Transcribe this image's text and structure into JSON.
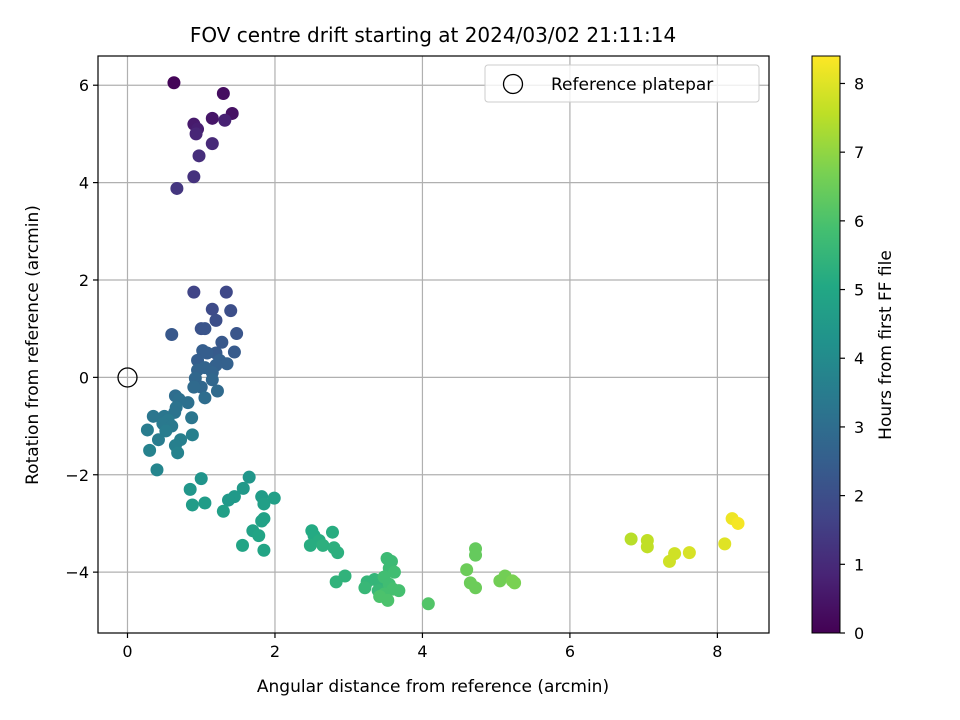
{
  "chart_data": {
    "type": "scatter",
    "title": "FOV centre drift starting at 2024/03/02 21:11:14",
    "xlabel": "Angular distance from reference (arcmin)",
    "ylabel": "Rotation from reference (arcmin)",
    "xlim": [
      -0.4,
      8.7
    ],
    "ylim": [
      -5.25,
      6.6
    ],
    "xticks": [
      0,
      2,
      4,
      6,
      8
    ],
    "yticks": [
      -4,
      -2,
      0,
      2,
      4,
      6
    ],
    "grid": true,
    "colormap": "viridis",
    "colorbar": {
      "label": "Hours from first FF file",
      "range": [
        0,
        8.4
      ],
      "ticks": [
        0,
        1,
        2,
        3,
        4,
        5,
        6,
        7,
        8
      ]
    },
    "legend": {
      "position": "top-right",
      "entries": [
        {
          "label": "Reference platepar",
          "marker": "open-circle"
        }
      ]
    },
    "reference_point": {
      "x": 0,
      "y": 0
    },
    "points": [
      [
        0.63,
        6.05,
        0.1
      ],
      [
        1.3,
        5.83,
        0.3
      ],
      [
        1.42,
        5.42,
        0.4
      ],
      [
        1.15,
        5.32,
        0.5
      ],
      [
        0.9,
        5.2,
        0.6
      ],
      [
        0.95,
        5.1,
        0.7
      ],
      [
        1.32,
        5.28,
        0.8
      ],
      [
        0.93,
        5.0,
        0.9
      ],
      [
        1.15,
        4.8,
        1.0
      ],
      [
        0.97,
        4.55,
        1.1
      ],
      [
        0.9,
        4.12,
        1.2
      ],
      [
        0.67,
        3.88,
        1.3
      ],
      [
        0.9,
        1.75,
        1.7
      ],
      [
        1.34,
        1.75,
        1.8
      ],
      [
        1.15,
        1.4,
        1.9
      ],
      [
        1.4,
        1.37,
        2.0
      ],
      [
        1.2,
        1.17,
        2.0
      ],
      [
        1.0,
        1.0,
        2.1
      ],
      [
        1.05,
        1.0,
        2.2
      ],
      [
        1.48,
        0.9,
        2.2
      ],
      [
        0.6,
        0.88,
        2.3
      ],
      [
        1.28,
        0.72,
        2.3
      ],
      [
        1.2,
        0.5,
        2.4
      ],
      [
        1.45,
        0.52,
        2.4
      ],
      [
        1.02,
        0.55,
        2.5
      ],
      [
        1.08,
        0.5,
        2.5
      ],
      [
        0.95,
        0.35,
        2.5
      ],
      [
        1.25,
        0.35,
        2.6
      ],
      [
        1.35,
        0.28,
        2.6
      ],
      [
        1.2,
        0.25,
        2.6
      ],
      [
        1.05,
        0.2,
        2.7
      ],
      [
        0.95,
        0.15,
        2.7
      ],
      [
        1.15,
        0.1,
        2.7
      ],
      [
        0.92,
        -0.02,
        2.8
      ],
      [
        1.15,
        -0.05,
        2.8
      ],
      [
        1.0,
        -0.2,
        2.8
      ],
      [
        0.9,
        -0.2,
        2.9
      ],
      [
        1.22,
        -0.28,
        2.9
      ],
      [
        1.05,
        -0.42,
        3.0
      ],
      [
        0.65,
        -0.38,
        3.0
      ],
      [
        0.7,
        -0.45,
        3.1
      ],
      [
        0.82,
        -0.52,
        3.1
      ],
      [
        0.66,
        -0.62,
        3.2
      ],
      [
        0.64,
        -0.72,
        3.2
      ],
      [
        0.87,
        -0.83,
        3.3
      ],
      [
        0.5,
        -0.8,
        3.3
      ],
      [
        0.35,
        -0.8,
        3.3
      ],
      [
        0.55,
        -0.88,
        3.4
      ],
      [
        0.48,
        -0.95,
        3.4
      ],
      [
        0.6,
        -1.0,
        3.4
      ],
      [
        0.52,
        -1.1,
        3.5
      ],
      [
        0.27,
        -1.08,
        3.5
      ],
      [
        0.42,
        -1.28,
        3.5
      ],
      [
        0.72,
        -1.28,
        3.6
      ],
      [
        0.88,
        -1.18,
        3.6
      ],
      [
        0.65,
        -1.4,
        3.6
      ],
      [
        0.3,
        -1.5,
        3.7
      ],
      [
        0.68,
        -1.55,
        3.7
      ],
      [
        0.4,
        -1.9,
        3.8
      ],
      [
        1.0,
        -2.08,
        4.3
      ],
      [
        1.65,
        -2.05,
        4.4
      ],
      [
        0.85,
        -2.3,
        4.4
      ],
      [
        1.57,
        -2.28,
        4.5
      ],
      [
        1.45,
        -2.45,
        4.5
      ],
      [
        1.37,
        -2.52,
        4.5
      ],
      [
        1.05,
        -2.58,
        4.6
      ],
      [
        0.88,
        -2.62,
        4.6
      ],
      [
        1.82,
        -2.45,
        4.6
      ],
      [
        1.99,
        -2.48,
        4.7
      ],
      [
        1.85,
        -2.6,
        4.7
      ],
      [
        1.3,
        -2.75,
        4.7
      ],
      [
        1.85,
        -2.9,
        4.8
      ],
      [
        1.82,
        -2.95,
        4.8
      ],
      [
        1.7,
        -3.15,
        4.8
      ],
      [
        1.78,
        -3.25,
        4.9
      ],
      [
        1.56,
        -3.45,
        4.9
      ],
      [
        1.85,
        -3.55,
        4.9
      ],
      [
        2.5,
        -3.15,
        5.1
      ],
      [
        2.53,
        -3.25,
        5.1
      ],
      [
        2.78,
        -3.18,
        5.2
      ],
      [
        2.6,
        -3.35,
        5.2
      ],
      [
        2.48,
        -3.45,
        5.2
      ],
      [
        2.65,
        -3.45,
        5.3
      ],
      [
        2.8,
        -3.5,
        5.3
      ],
      [
        2.85,
        -3.6,
        5.3
      ],
      [
        2.95,
        -4.08,
        5.4
      ],
      [
        2.83,
        -4.2,
        5.4
      ],
      [
        3.35,
        -4.15,
        5.5
      ],
      [
        3.25,
        -4.2,
        5.5
      ],
      [
        3.45,
        -4.25,
        5.5
      ],
      [
        3.22,
        -4.32,
        5.6
      ],
      [
        3.4,
        -4.38,
        5.6
      ],
      [
        3.52,
        -3.72,
        5.7
      ],
      [
        3.58,
        -3.78,
        5.7
      ],
      [
        3.55,
        -3.92,
        5.7
      ],
      [
        3.62,
        -4.0,
        5.8
      ],
      [
        3.48,
        -4.1,
        5.8
      ],
      [
        3.55,
        -4.25,
        5.8
      ],
      [
        3.6,
        -4.35,
        5.9
      ],
      [
        3.68,
        -4.38,
        5.9
      ],
      [
        3.48,
        -4.45,
        5.9
      ],
      [
        3.42,
        -4.5,
        6.0
      ],
      [
        3.53,
        -4.58,
        6.0
      ],
      [
        4.08,
        -4.65,
        6.1
      ],
      [
        4.72,
        -3.52,
        6.4
      ],
      [
        4.72,
        -3.65,
        6.4
      ],
      [
        4.6,
        -3.95,
        6.5
      ],
      [
        4.65,
        -4.22,
        6.5
      ],
      [
        4.72,
        -4.32,
        6.5
      ],
      [
        5.12,
        -4.08,
        6.6
      ],
      [
        5.05,
        -4.18,
        6.6
      ],
      [
        5.22,
        -4.18,
        6.7
      ],
      [
        5.25,
        -4.22,
        6.7
      ],
      [
        6.83,
        -3.32,
        7.5
      ],
      [
        7.05,
        -3.35,
        7.6
      ],
      [
        7.05,
        -3.48,
        7.6
      ],
      [
        7.42,
        -3.62,
        7.8
      ],
      [
        7.35,
        -3.78,
        7.8
      ],
      [
        7.62,
        -3.6,
        7.9
      ],
      [
        8.1,
        -3.42,
        8.0
      ],
      [
        8.2,
        -2.9,
        8.2
      ],
      [
        8.28,
        -3.0,
        8.3
      ]
    ]
  }
}
